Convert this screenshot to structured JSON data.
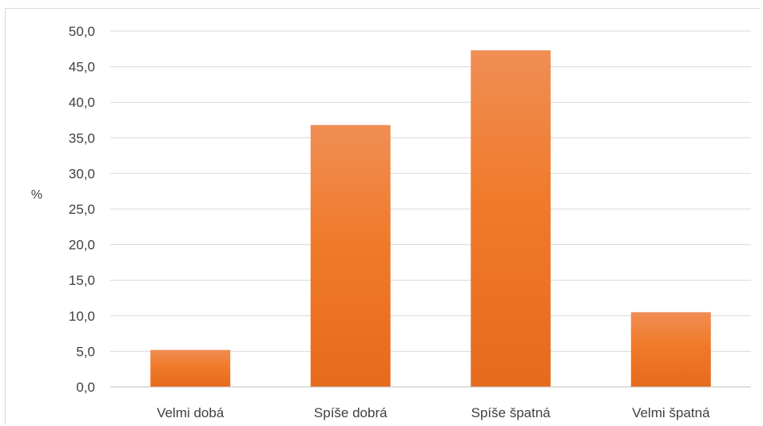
{
  "chart_data": {
    "type": "bar",
    "title": "",
    "xlabel": "",
    "ylabel": "%",
    "categories": [
      "Velmi dobá",
      "Spíše dobrá",
      "Spíše špatná",
      "Velmi špatná"
    ],
    "values": [
      5.2,
      36.8,
      47.3,
      10.5
    ],
    "ylim": [
      0,
      50
    ],
    "ytick_step": 5,
    "ytick_labels": [
      "0,0",
      "5,0",
      "10,0",
      "15,0",
      "20,0",
      "25,0",
      "30,0",
      "35,0",
      "40,0",
      "45,0",
      "50,0"
    ],
    "grid": true,
    "legend": "none",
    "colors": {
      "bar_top": "#f08e55",
      "bar_bottom": "#e66b1c",
      "grid": "#d9d9d9",
      "axis": "#bfbfbf",
      "text": "#404040"
    }
  }
}
